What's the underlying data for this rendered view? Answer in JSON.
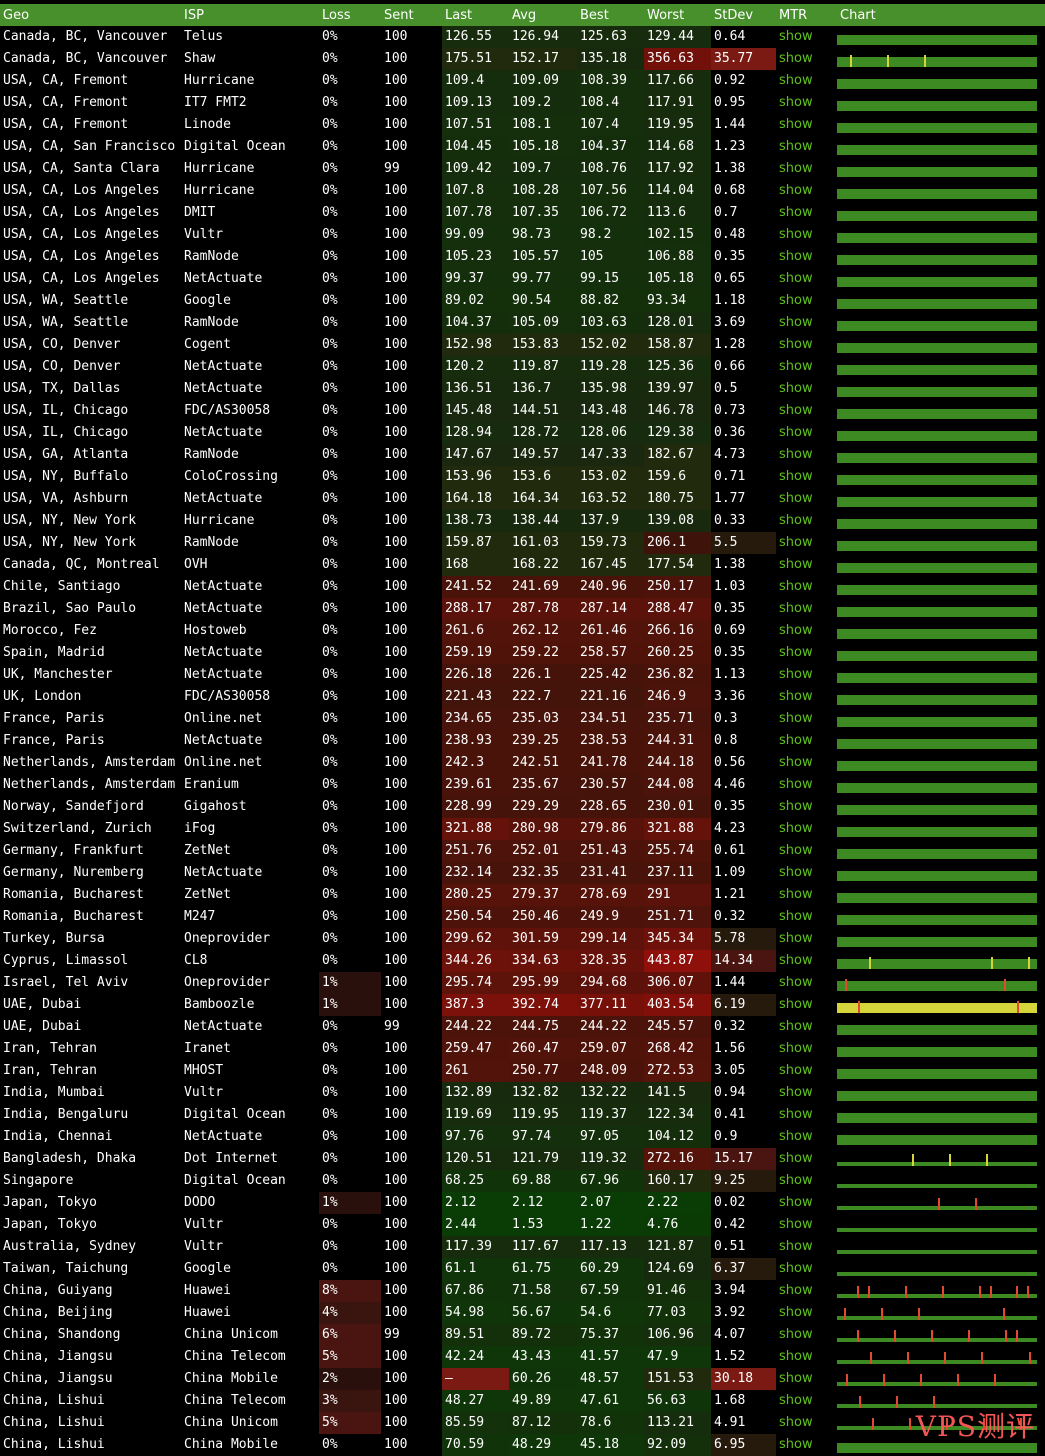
{
  "headers": [
    "Geo",
    "ISP",
    "Loss",
    "Sent",
    "Last",
    "Avg",
    "Best",
    "Worst",
    "StDev",
    "MTR",
    "Chart"
  ],
  "mtr_label": "show",
  "watermark": "VPS测评",
  "rows": [
    [
      "Canada, BC, Vancouver",
      "Telus",
      "0%",
      "100",
      "126.55",
      "126.94",
      "125.63",
      "129.44",
      "0.64"
    ],
    [
      "Canada, BC, Vancouver",
      "Shaw",
      "0%",
      "100",
      "175.51",
      "152.17",
      "135.18",
      "356.63",
      "35.77"
    ],
    [
      "USA, CA, Fremont",
      "Hurricane",
      "0%",
      "100",
      "109.4",
      "109.09",
      "108.39",
      "117.66",
      "0.92"
    ],
    [
      "USA, CA, Fremont",
      "IT7 FMT2",
      "0%",
      "100",
      "109.13",
      "109.2",
      "108.4",
      "117.91",
      "0.95"
    ],
    [
      "USA, CA, Fremont",
      "Linode",
      "0%",
      "100",
      "107.51",
      "108.1",
      "107.4",
      "119.95",
      "1.44"
    ],
    [
      "USA, CA, San Francisco",
      "Digital Ocean",
      "0%",
      "100",
      "104.45",
      "105.18",
      "104.37",
      "114.68",
      "1.23"
    ],
    [
      "USA, CA, Santa Clara",
      "Hurricane",
      "0%",
      "99",
      "109.42",
      "109.7",
      "108.76",
      "117.92",
      "1.38"
    ],
    [
      "USA, CA, Los Angeles",
      "Hurricane",
      "0%",
      "100",
      "107.8",
      "108.28",
      "107.56",
      "114.04",
      "0.68"
    ],
    [
      "USA, CA, Los Angeles",
      "DMIT",
      "0%",
      "100",
      "107.78",
      "107.35",
      "106.72",
      "113.6",
      "0.7"
    ],
    [
      "USA, CA, Los Angeles",
      "Vultr",
      "0%",
      "100",
      "99.09",
      "98.73",
      "98.2",
      "102.15",
      "0.48"
    ],
    [
      "USA, CA, Los Angeles",
      "RamNode",
      "0%",
      "100",
      "105.23",
      "105.57",
      "105",
      "106.88",
      "0.35"
    ],
    [
      "USA, CA, Los Angeles",
      "NetActuate",
      "0%",
      "100",
      "99.37",
      "99.77",
      "99.15",
      "105.18",
      "0.65"
    ],
    [
      "USA, WA, Seattle",
      "Google",
      "0%",
      "100",
      "89.02",
      "90.54",
      "88.82",
      "93.34",
      "1.18"
    ],
    [
      "USA, WA, Seattle",
      "RamNode",
      "0%",
      "100",
      "104.37",
      "105.09",
      "103.63",
      "128.01",
      "3.69"
    ],
    [
      "USA, CO, Denver",
      "Cogent",
      "0%",
      "100",
      "152.98",
      "153.83",
      "152.02",
      "158.87",
      "1.28"
    ],
    [
      "USA, CO, Denver",
      "NetActuate",
      "0%",
      "100",
      "120.2",
      "119.87",
      "119.28",
      "125.36",
      "0.66"
    ],
    [
      "USA, TX, Dallas",
      "NetActuate",
      "0%",
      "100",
      "136.51",
      "136.7",
      "135.98",
      "139.97",
      "0.5"
    ],
    [
      "USA, IL, Chicago",
      "FDC/AS30058",
      "0%",
      "100",
      "145.48",
      "144.51",
      "143.48",
      "146.78",
      "0.73"
    ],
    [
      "USA, IL, Chicago",
      "NetActuate",
      "0%",
      "100",
      "128.94",
      "128.72",
      "128.06",
      "129.38",
      "0.36"
    ],
    [
      "USA, GA, Atlanta",
      "RamNode",
      "0%",
      "100",
      "147.67",
      "149.57",
      "147.33",
      "182.67",
      "4.73"
    ],
    [
      "USA, NY, Buffalo",
      "ColoCrossing",
      "0%",
      "100",
      "153.96",
      "153.6",
      "153.02",
      "159.6",
      "0.71"
    ],
    [
      "USA, VA, Ashburn",
      "NetActuate",
      "0%",
      "100",
      "164.18",
      "164.34",
      "163.52",
      "180.75",
      "1.77"
    ],
    [
      "USA, NY, New York",
      "Hurricane",
      "0%",
      "100",
      "138.73",
      "138.44",
      "137.9",
      "139.08",
      "0.33"
    ],
    [
      "USA, NY, New York",
      "RamNode",
      "0%",
      "100",
      "159.87",
      "161.03",
      "159.73",
      "206.1",
      "5.5"
    ],
    [
      "Canada, QC, Montreal",
      "OVH",
      "0%",
      "100",
      "168",
      "168.22",
      "167.45",
      "177.54",
      "1.38"
    ],
    [
      "Chile, Santiago",
      "NetActuate",
      "0%",
      "100",
      "241.52",
      "241.69",
      "240.96",
      "250.17",
      "1.03"
    ],
    [
      "Brazil, Sao Paulo",
      "NetActuate",
      "0%",
      "100",
      "288.17",
      "287.78",
      "287.14",
      "288.47",
      "0.35"
    ],
    [
      "Morocco, Fez",
      "Hostoweb",
      "0%",
      "100",
      "261.6",
      "262.12",
      "261.46",
      "266.16",
      "0.69"
    ],
    [
      "Spain, Madrid",
      "NetActuate",
      "0%",
      "100",
      "259.19",
      "259.22",
      "258.57",
      "260.25",
      "0.35"
    ],
    [
      "UK, Manchester",
      "NetActuate",
      "0%",
      "100",
      "226.18",
      "226.1",
      "225.42",
      "236.82",
      "1.13"
    ],
    [
      "UK, London",
      "FDC/AS30058",
      "0%",
      "100",
      "221.43",
      "222.7",
      "221.16",
      "246.9",
      "3.36"
    ],
    [
      "France, Paris",
      "Online.net",
      "0%",
      "100",
      "234.65",
      "235.03",
      "234.51",
      "235.71",
      "0.3"
    ],
    [
      "France, Paris",
      "NetActuate",
      "0%",
      "100",
      "238.93",
      "239.25",
      "238.53",
      "244.31",
      "0.8"
    ],
    [
      "Netherlands, Amsterdam",
      "Online.net",
      "0%",
      "100",
      "242.3",
      "242.51",
      "241.78",
      "244.18",
      "0.56"
    ],
    [
      "Netherlands, Amsterdam",
      "Eranium",
      "0%",
      "100",
      "239.61",
      "235.67",
      "230.57",
      "244.08",
      "4.46"
    ],
    [
      "Norway, Sandefjord",
      "Gigahost",
      "0%",
      "100",
      "228.99",
      "229.29",
      "228.65",
      "230.01",
      "0.35"
    ],
    [
      "Switzerland, Zurich",
      "iFog",
      "0%",
      "100",
      "321.88",
      "280.98",
      "279.86",
      "321.88",
      "4.23"
    ],
    [
      "Germany, Frankfurt",
      "ZetNet",
      "0%",
      "100",
      "251.76",
      "252.01",
      "251.43",
      "255.74",
      "0.61"
    ],
    [
      "Germany, Nuremberg",
      "NetActuate",
      "0%",
      "100",
      "232.14",
      "232.35",
      "231.41",
      "237.11",
      "1.09"
    ],
    [
      "Romania, Bucharest",
      "ZetNet",
      "0%",
      "100",
      "280.25",
      "279.37",
      "278.69",
      "291",
      "1.21"
    ],
    [
      "Romania, Bucharest",
      "M247",
      "0%",
      "100",
      "250.54",
      "250.46",
      "249.9",
      "251.71",
      "0.32"
    ],
    [
      "Turkey, Bursa",
      "Oneprovider",
      "0%",
      "100",
      "299.62",
      "301.59",
      "299.14",
      "345.34",
      "5.78"
    ],
    [
      "Cyprus, Limassol",
      "CL8",
      "0%",
      "100",
      "344.26",
      "334.63",
      "328.35",
      "443.87",
      "14.34"
    ],
    [
      "Israel, Tel Aviv",
      "Oneprovider",
      "1%",
      "100",
      "295.74",
      "295.99",
      "294.68",
      "306.07",
      "1.44"
    ],
    [
      "UAE, Dubai",
      "Bamboozle",
      "1%",
      "100",
      "387.3",
      "392.74",
      "377.11",
      "403.54",
      "6.19"
    ],
    [
      "UAE, Dubai",
      "NetActuate",
      "0%",
      "99",
      "244.22",
      "244.75",
      "244.22",
      "245.57",
      "0.32"
    ],
    [
      "Iran, Tehran",
      "Iranet",
      "0%",
      "100",
      "259.47",
      "260.47",
      "259.07",
      "268.42",
      "1.56"
    ],
    [
      "Iran, Tehran",
      "MHOST",
      "0%",
      "100",
      "261",
      "250.77",
      "248.09",
      "272.53",
      "3.05"
    ],
    [
      "India, Mumbai",
      "Vultr",
      "0%",
      "100",
      "132.89",
      "132.82",
      "132.22",
      "141.5",
      "0.94"
    ],
    [
      "India, Bengaluru",
      "Digital Ocean",
      "0%",
      "100",
      "119.69",
      "119.95",
      "119.37",
      "122.34",
      "0.41"
    ],
    [
      "India, Chennai",
      "NetActuate",
      "0%",
      "100",
      "97.76",
      "97.74",
      "97.05",
      "104.12",
      "0.9"
    ],
    [
      "Bangladesh, Dhaka",
      "Dot Internet",
      "0%",
      "100",
      "120.51",
      "121.79",
      "119.32",
      "272.16",
      "15.17"
    ],
    [
      "Singapore",
      "Digital Ocean",
      "0%",
      "100",
      "68.25",
      "69.88",
      "67.96",
      "160.17",
      "9.25"
    ],
    [
      "Japan, Tokyo",
      "DODO",
      "1%",
      "100",
      "2.12",
      "2.12",
      "2.07",
      "2.22",
      "0.02"
    ],
    [
      "Japan, Tokyo",
      "Vultr",
      "0%",
      "100",
      "2.44",
      "1.53",
      "1.22",
      "4.76",
      "0.42"
    ],
    [
      "Australia, Sydney",
      "Vultr",
      "0%",
      "100",
      "117.39",
      "117.67",
      "117.13",
      "121.87",
      "0.51"
    ],
    [
      "Taiwan, Taichung",
      "Google",
      "0%",
      "100",
      "61.1",
      "61.75",
      "60.29",
      "124.69",
      "6.37"
    ],
    [
      "China, Guiyang",
      "Huawei",
      "8%",
      "100",
      "67.86",
      "71.58",
      "67.59",
      "91.46",
      "3.94"
    ],
    [
      "China, Beijing",
      "Huawei",
      "4%",
      "100",
      "54.98",
      "56.67",
      "54.6",
      "77.03",
      "3.92"
    ],
    [
      "China, Shandong",
      "China Unicom",
      "6%",
      "99",
      "89.51",
      "89.72",
      "75.37",
      "106.96",
      "4.07"
    ],
    [
      "China, Jiangsu",
      "China Telecom",
      "5%",
      "100",
      "42.24",
      "43.43",
      "41.57",
      "47.9",
      "1.52"
    ],
    [
      "China, Jiangsu",
      "China Mobile",
      "2%",
      "100",
      "–",
      "60.26",
      "48.57",
      "151.53",
      "30.18"
    ],
    [
      "China, Lishui",
      "China Telecom",
      "3%",
      "100",
      "48.27",
      "49.89",
      "47.61",
      "56.63",
      "1.68"
    ],
    [
      "China, Lishui",
      "China Unicom",
      "5%",
      "100",
      "85.59",
      "87.12",
      "78.6",
      "113.21",
      "4.91"
    ],
    [
      "China, Lishui",
      "China Mobile",
      "0%",
      "100",
      "70.59",
      "48.29",
      "45.18",
      "92.09",
      "6.95"
    ]
  ]
}
